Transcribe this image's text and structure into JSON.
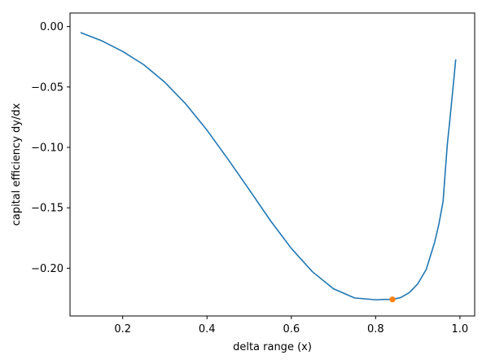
{
  "chart_data": {
    "type": "line",
    "title": "",
    "xlabel": "delta range (x)",
    "ylabel": "capital efficiency dy/dx",
    "xlim": [
      0.075,
      1.035
    ],
    "ylim": [
      -0.2395,
      0.0112
    ],
    "xticks": [
      {
        "value": 0.2,
        "label": "0.2"
      },
      {
        "value": 0.4,
        "label": "0.4"
      },
      {
        "value": 0.6,
        "label": "0.6"
      },
      {
        "value": 0.8,
        "label": "0.8"
      },
      {
        "value": 1.0,
        "label": "1.0"
      }
    ],
    "yticks": [
      {
        "value": 0.0,
        "label": "0.00"
      },
      {
        "value": -0.05,
        "label": "−0.05"
      },
      {
        "value": -0.1,
        "label": "−0.10"
      },
      {
        "value": -0.15,
        "label": "−0.15"
      },
      {
        "value": -0.2,
        "label": "−0.20"
      }
    ],
    "grid": false,
    "series": [
      {
        "color": "#1f77b4",
        "x": [
          0.1,
          0.15,
          0.2,
          0.25,
          0.3,
          0.35,
          0.4,
          0.45,
          0.5,
          0.55,
          0.6,
          0.65,
          0.7,
          0.75,
          0.8,
          0.82,
          0.84,
          0.86,
          0.88,
          0.9,
          0.92,
          0.94,
          0.95,
          0.96,
          0.97,
          0.975,
          0.98,
          0.985,
          0.99
        ],
        "y": [
          -0.005,
          -0.0117,
          -0.0206,
          -0.0316,
          -0.0461,
          -0.0642,
          -0.0858,
          -0.1099,
          -0.1349,
          -0.1604,
          -0.1836,
          -0.2029,
          -0.217,
          -0.2246,
          -0.2261,
          -0.2258,
          -0.2258,
          -0.2242,
          -0.2202,
          -0.2129,
          -0.2011,
          -0.1785,
          -0.1636,
          -0.1447,
          -0.0977,
          -0.0811,
          -0.0634,
          -0.0456,
          -0.0272
        ]
      }
    ],
    "highlight_point": {
      "x": 0.84,
      "y": -0.2258,
      "color": "#ff7f0e"
    }
  }
}
